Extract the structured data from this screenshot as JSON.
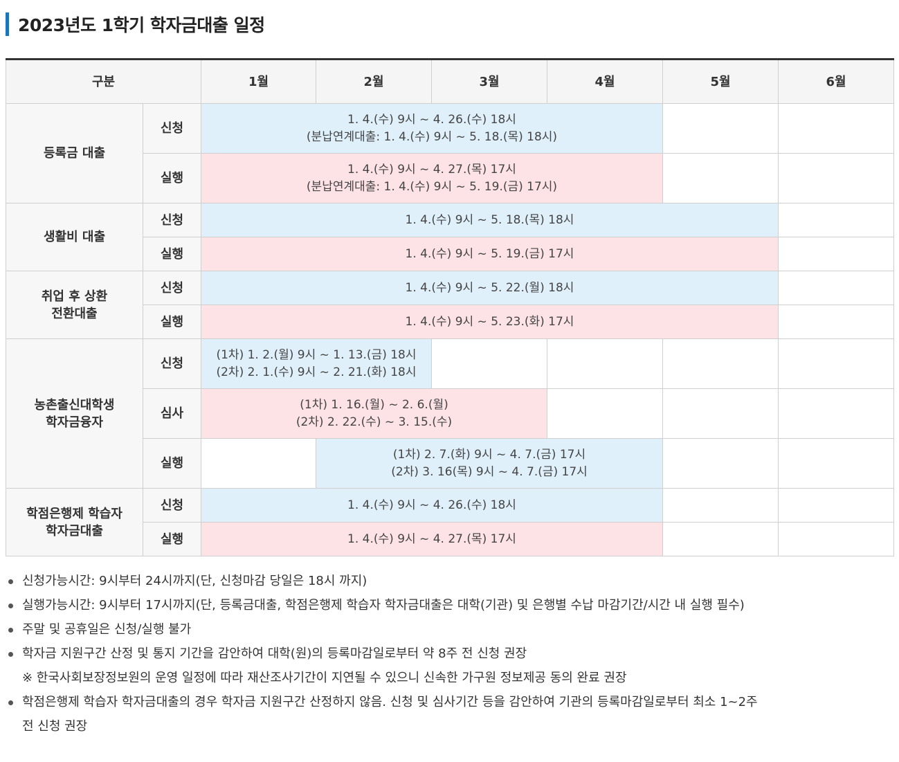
{
  "title": "2023년도 1학기 학자금대출 일정",
  "headers": {
    "category": "구분",
    "months": [
      "1월",
      "2월",
      "3월",
      "4월",
      "5월",
      "6월"
    ]
  },
  "groups": [
    {
      "name": "등록금 대출",
      "apply": {
        "label": "신청",
        "lines": [
          "1. 4.(수) 9시 ~ 4. 26.(수) 18시",
          "(분납연계대출: 1. 4.(수) 9시 ~ 5. 18.(목) 18시)"
        ]
      },
      "execute": {
        "label": "실행",
        "lines": [
          "1. 4.(수) 9시 ~ 4. 27.(목) 17시",
          "(분납연계대출: 1. 4.(수) 9시 ~ 5. 19.(금) 17시)"
        ]
      }
    },
    {
      "name": "생활비 대출",
      "apply": {
        "label": "신청",
        "lines": [
          "1. 4.(수) 9시 ~ 5. 18.(목) 18시"
        ]
      },
      "execute": {
        "label": "실행",
        "lines": [
          "1. 4.(수) 9시 ~ 5. 19.(금) 17시"
        ]
      }
    },
    {
      "name_lines": [
        "취업 후 상환",
        "전환대출"
      ],
      "apply": {
        "label": "신청",
        "lines": [
          "1. 4.(수) 9시 ~ 5. 22.(월) 18시"
        ]
      },
      "execute": {
        "label": "실행",
        "lines": [
          "1. 4.(수) 9시 ~ 5. 23.(화) 17시"
        ]
      }
    },
    {
      "name_lines": [
        "농촌출신대학생",
        "학자금융자"
      ],
      "apply": {
        "label": "신청",
        "lines": [
          "(1차) 1. 2.(월) 9시 ~ 1. 13.(금) 18시",
          "(2차) 2. 1.(수) 9시 ~ 2. 21.(화) 18시"
        ]
      },
      "review": {
        "label": "심사",
        "lines": [
          "(1차) 1. 16.(월) ~ 2. 6.(월)",
          "(2차) 2. 22.(수) ~ 3. 15.(수)"
        ]
      },
      "execute": {
        "label": "실행",
        "lines": [
          "(1차) 2. 7.(화) 9시 ~ 4. 7.(금) 17시",
          "(2차) 3. 16(목) 9시 ~ 4. 7.(금) 17시"
        ]
      }
    },
    {
      "name_lines": [
        "학점은행제 학습자",
        "학자금대출"
      ],
      "apply": {
        "label": "신청",
        "lines": [
          "1. 4.(수) 9시 ~ 4. 26.(수) 18시"
        ]
      },
      "execute": {
        "label": "실행",
        "lines": [
          "1. 4.(수) 9시 ~ 4. 27.(목) 17시"
        ]
      }
    }
  ],
  "colors": {
    "apply": "#dff0fa",
    "execute": "#fde2e6",
    "title_bar": "#1f73b7"
  },
  "notes": [
    "신청가능시간: 9시부터 24시까지(단, 신청마감 당일은 18시 까지)",
    "실행가능시간: 9시부터 17시까지(단, 등록금대출, 학점은행제 학습자 학자금대출은 대학(기관) 및 은행별 수납 마감기간/시간 내 실행 필수)",
    "주말 및 공휴일은 신청/실행 불가",
    "학자금 지원구간 산정 및 통지 기간을 감안하여 대학(원)의 등록마감일로부터 약 8주 전 신청 권장",
    "※ 한국사회보장정보원의 운영 일정에 따라 재산조사기간이 지연될 수 있으니 신속한 가구원 정보제공 동의 완료 권장",
    "학점은행제 학습자 학자금대출의 경우 학자금 지원구간 산정하지 않음. 신청 및 심사기간 등을 감안하여 기관의 등록마감일로부터 최소 1~2주",
    "전 신청 권장"
  ]
}
